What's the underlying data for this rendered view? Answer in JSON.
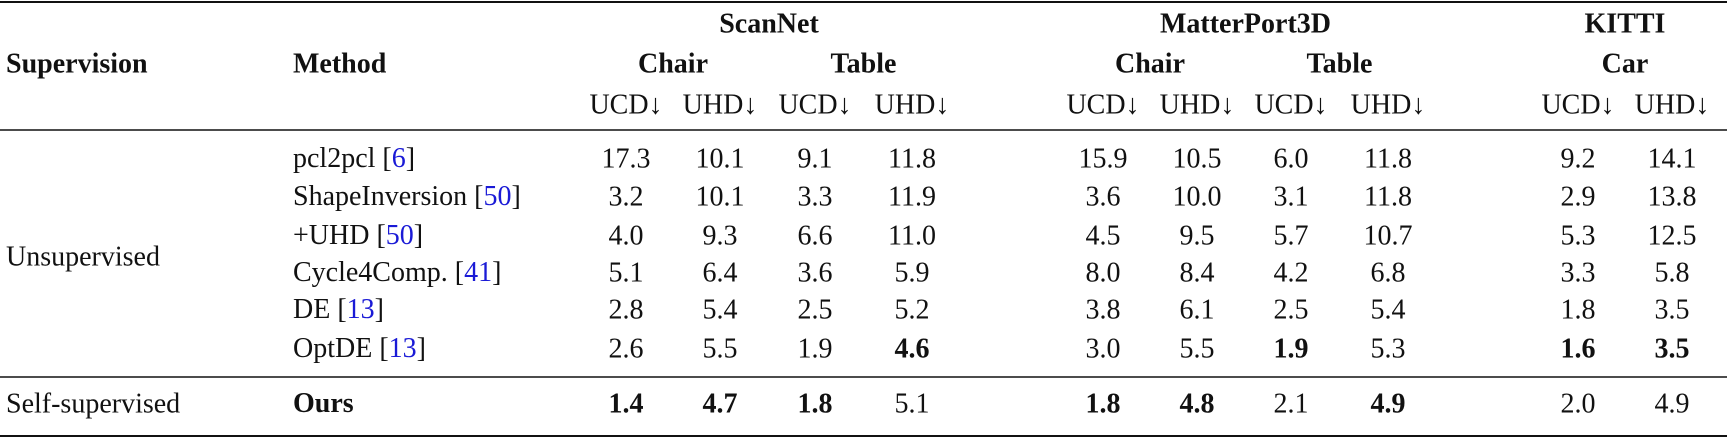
{
  "header": {
    "supervision": "Supervision",
    "method": "Method",
    "datasets": [
      {
        "name": "ScanNet",
        "classes": [
          {
            "name": "Chair",
            "metrics": [
              "UCD↓",
              "UHD↓"
            ]
          },
          {
            "name": "Table",
            "metrics": [
              "UCD↓",
              "UHD↓"
            ]
          }
        ]
      },
      {
        "name": "MatterPort3D",
        "classes": [
          {
            "name": "Chair",
            "metrics": [
              "UCD↓",
              "UHD↓"
            ]
          },
          {
            "name": "Table",
            "metrics": [
              "UCD↓",
              "UHD↓"
            ]
          }
        ]
      },
      {
        "name": "KITTI",
        "classes": [
          {
            "name": "Car",
            "metrics": [
              "UCD↓",
              "UHD↓"
            ]
          }
        ]
      }
    ]
  },
  "groups": [
    {
      "supervision": "Unsupervised",
      "rows": [
        {
          "method": [
            {
              "text": "pcl2pcl ["
            },
            {
              "text": "6",
              "link": true
            },
            {
              "text": "]"
            }
          ],
          "method_bold": false,
          "values": [
            "17.3",
            "10.1",
            "9.1",
            "11.8",
            "15.9",
            "10.5",
            "6.0",
            "11.8",
            "9.2",
            "14.1"
          ],
          "bold": []
        },
        {
          "method": [
            {
              "text": "ShapeInversion ["
            },
            {
              "text": "50",
              "link": true
            },
            {
              "text": "]"
            }
          ],
          "method_bold": false,
          "values": [
            "3.2",
            "10.1",
            "3.3",
            "11.9",
            "3.6",
            "10.0",
            "3.1",
            "11.8",
            "2.9",
            "13.8"
          ],
          "bold": []
        },
        {
          "method": [
            {
              "text": "+UHD ["
            },
            {
              "text": "50",
              "link": true
            },
            {
              "text": "]"
            }
          ],
          "method_bold": false,
          "values": [
            "4.0",
            "9.3",
            "6.6",
            "11.0",
            "4.5",
            "9.5",
            "5.7",
            "10.7",
            "5.3",
            "12.5"
          ],
          "bold": []
        },
        {
          "method": [
            {
              "text": "Cycle4Comp. ["
            },
            {
              "text": "41",
              "link": true
            },
            {
              "text": "]"
            }
          ],
          "method_bold": false,
          "values": [
            "5.1",
            "6.4",
            "3.6",
            "5.9",
            "8.0",
            "8.4",
            "4.2",
            "6.8",
            "3.3",
            "5.8"
          ],
          "bold": []
        },
        {
          "method": [
            {
              "text": "DE ["
            },
            {
              "text": "13",
              "link": true
            },
            {
              "text": "]"
            }
          ],
          "method_bold": false,
          "values": [
            "2.8",
            "5.4",
            "2.5",
            "5.2",
            "3.8",
            "6.1",
            "2.5",
            "5.4",
            "1.8",
            "3.5"
          ],
          "bold": []
        },
        {
          "method": [
            {
              "text": "OptDE ["
            },
            {
              "text": "13",
              "link": true
            },
            {
              "text": "]"
            }
          ],
          "method_bold": false,
          "values": [
            "2.6",
            "5.5",
            "1.9",
            "4.6",
            "3.0",
            "5.5",
            "1.9",
            "5.3",
            "1.6",
            "3.5"
          ],
          "bold": [
            3,
            6,
            8,
            9
          ]
        }
      ]
    },
    {
      "supervision": "Self-supervised",
      "rows": [
        {
          "method": [
            {
              "text": "Ours"
            }
          ],
          "method_bold": true,
          "values": [
            "1.4",
            "4.7",
            "1.8",
            "5.1",
            "1.8",
            "4.8",
            "2.1",
            "4.9",
            "2.0",
            "4.9"
          ],
          "bold": [
            0,
            1,
            2,
            4,
            5,
            7
          ]
        }
      ]
    }
  ]
}
